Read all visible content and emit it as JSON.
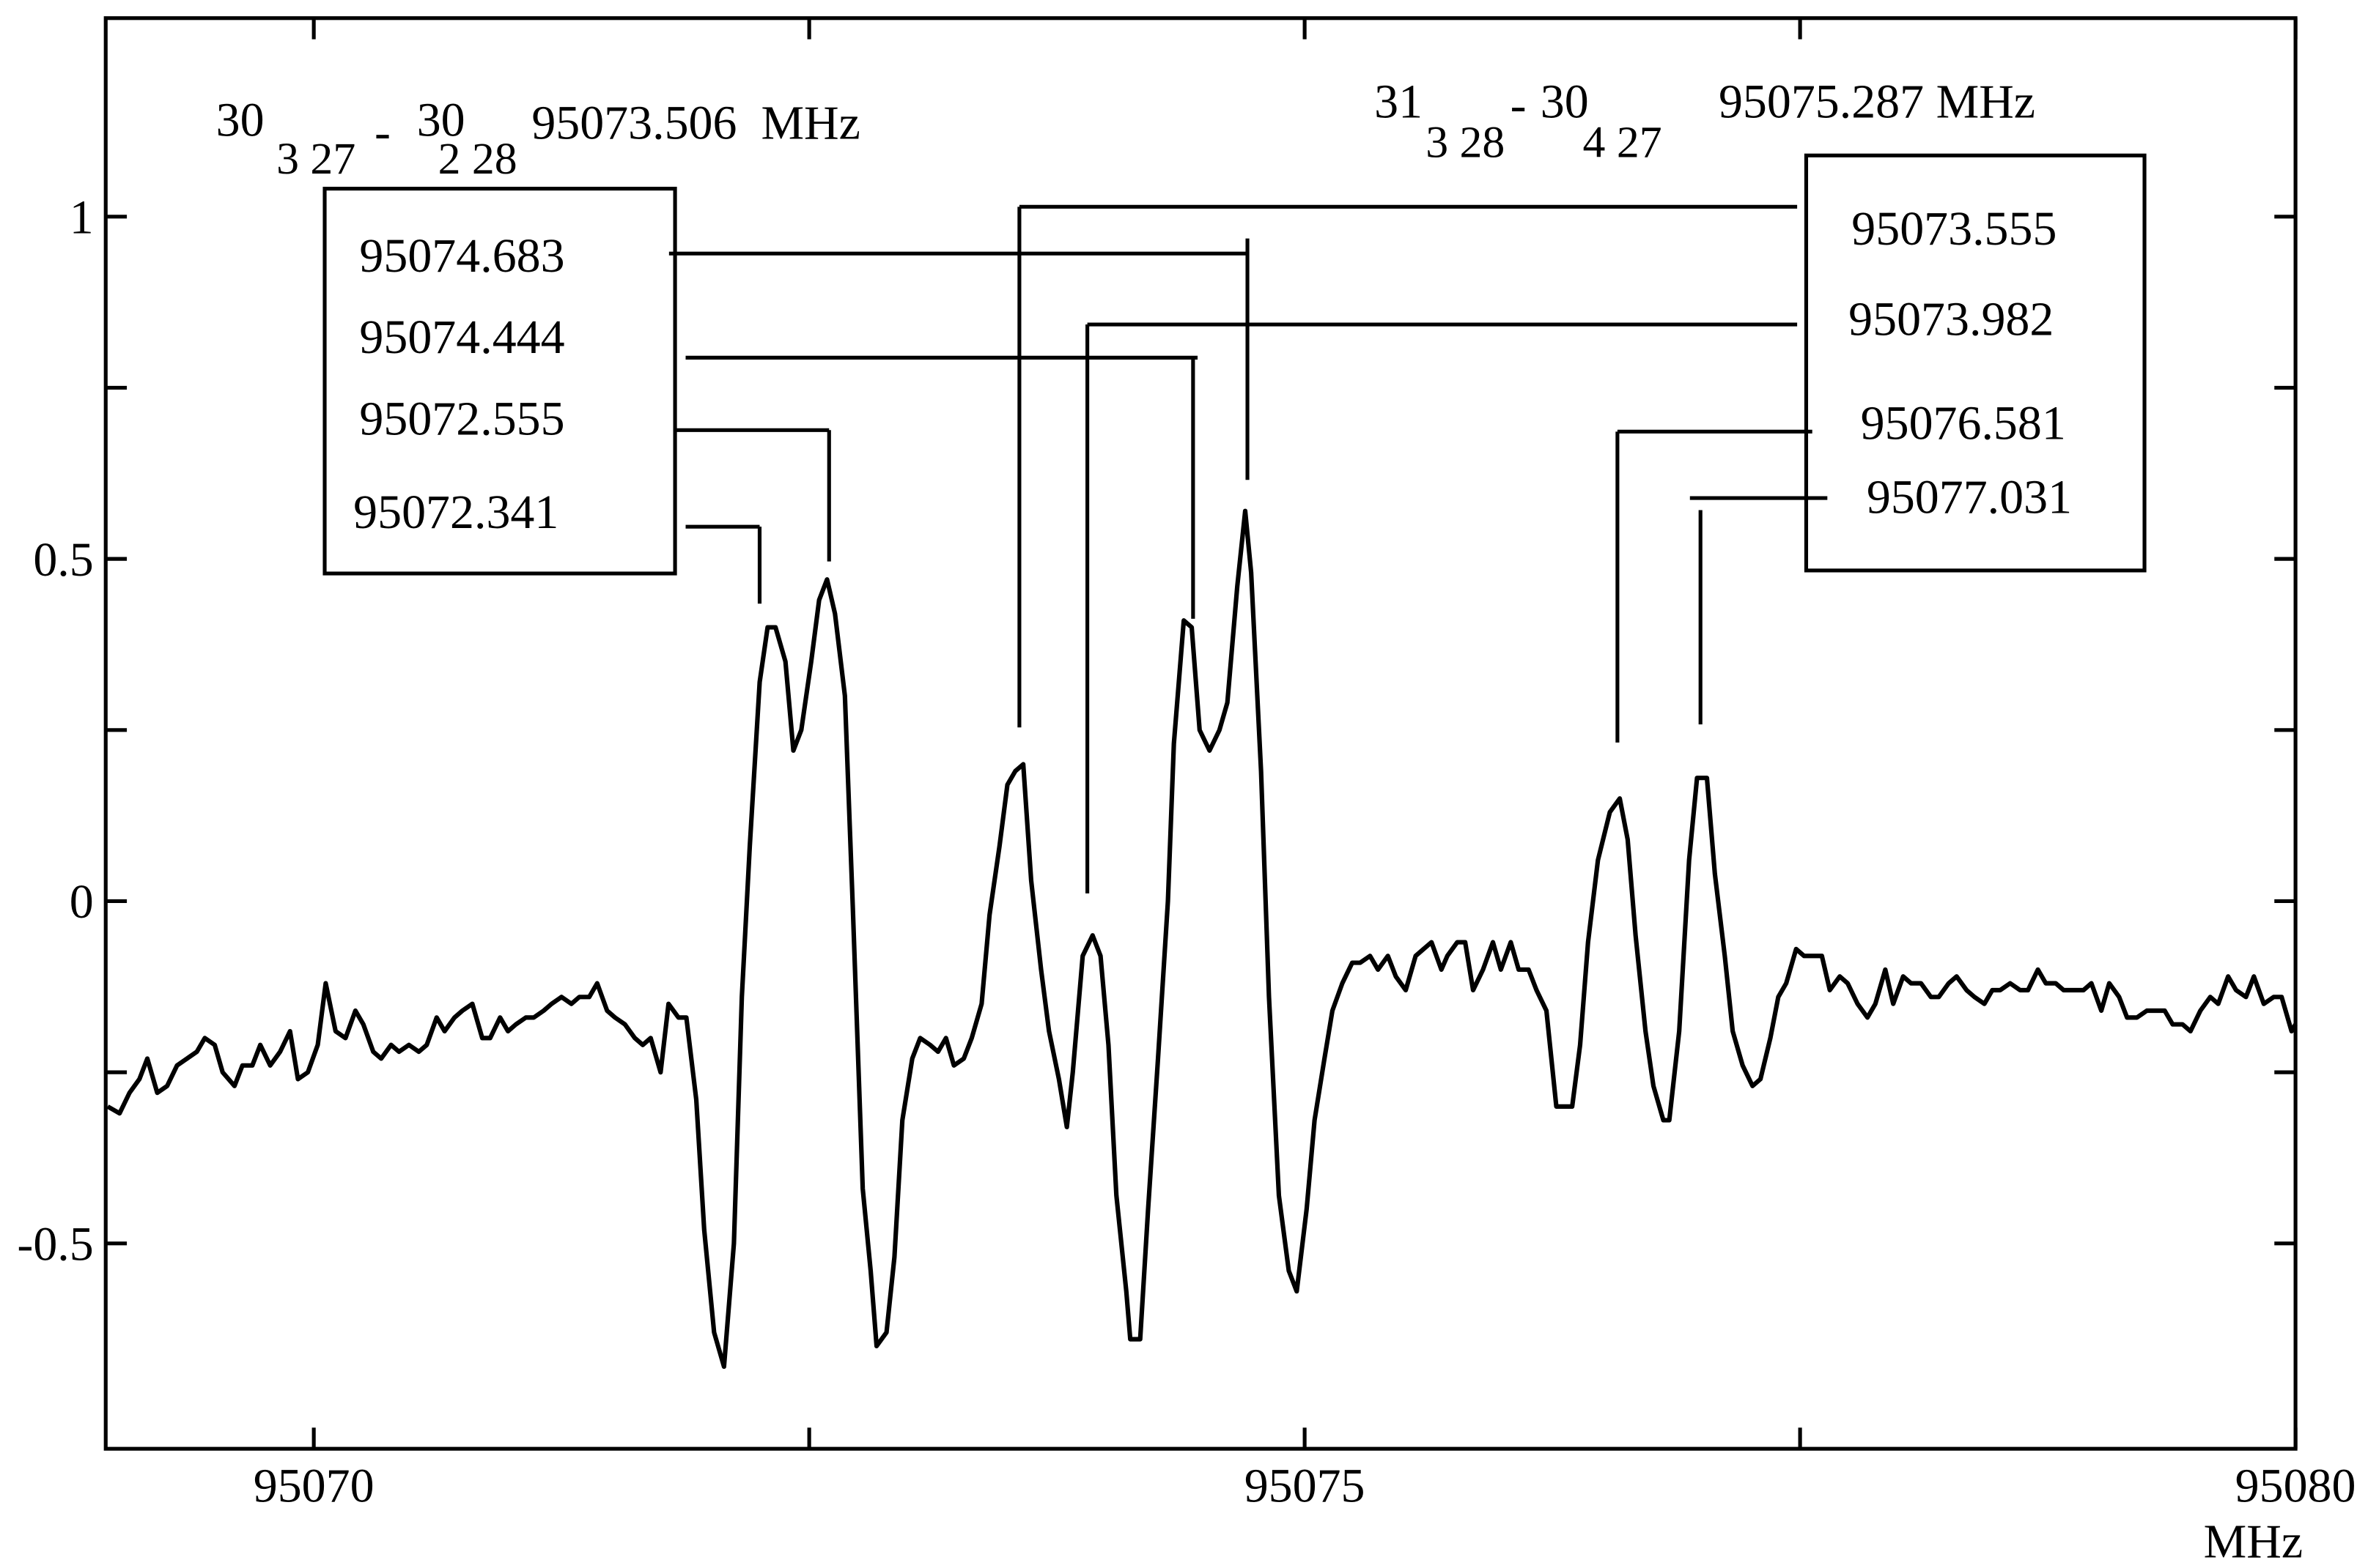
{
  "chart_data": {
    "type": "line",
    "x_label": "MHz",
    "xlim": [
      95068.95,
      95080
    ],
    "ylim": [
      -0.8,
      1.29
    ],
    "xticks": [
      95070,
      95075,
      95080
    ],
    "x_minor_ticks": [
      95072.5,
      95077.5
    ],
    "yticks": [
      -0.5,
      0,
      0.5,
      1
    ],
    "y_minor_ticks": [
      -0.25,
      0.25,
      0.75
    ],
    "color": "#000000",
    "x": [
      95068.96,
      95069.02,
      95069.07,
      95069.12,
      95069.16,
      95069.21,
      95069.26,
      95069.31,
      95069.36,
      95069.41,
      95069.45,
      95069.5,
      95069.54,
      95069.6,
      95069.64,
      95069.69,
      95069.73,
      95069.78,
      95069.83,
      95069.88,
      95069.92,
      95069.97,
      95070.02,
      95070.06,
      95070.11,
      95070.16,
      95070.21,
      95070.25,
      95070.3,
      95070.34,
      95070.39,
      95070.43,
      95070.48,
      95070.53,
      95070.57,
      95070.62,
      95070.66,
      95070.71,
      95070.75,
      95070.8,
      95070.85,
      95070.89,
      95070.94,
      95070.98,
      95071.02,
      95071.07,
      95071.11,
      95071.16,
      95071.2,
      95071.25,
      95071.3,
      95071.34,
      95071.39,
      95071.43,
      95071.48,
      95071.52,
      95071.57,
      95071.62,
      95071.66,
      95071.7,
      95071.75,
      95071.79,
      95071.84,
      95071.88,
      95071.93,
      95071.97,
      95072.02,
      95072.07,
      95072.12,
      95072.16,
      95072.2,
      95072.25,
      95072.29,
      95072.33,
      95072.38,
      95072.42,
      95072.46,
      95072.51,
      95072.55,
      95072.59,
      95072.63,
      95072.68,
      95072.72,
      95072.77,
      95072.81,
      95072.84,
      95072.89,
      95072.93,
      95072.97,
      95073.02,
      95073.06,
      95073.11,
      95073.15,
      95073.19,
      95073.23,
      95073.28,
      95073.32,
      95073.37,
      95073.41,
      95073.46,
      95073.5,
      95073.54,
      95073.58,
      95073.62,
      95073.67,
      95073.71,
      95073.76,
      95073.8,
      95073.83,
      95073.88,
      95073.93,
      95073.97,
      95074.01,
      95074.05,
      95074.1,
      95074.12,
      95074.17,
      95074.21,
      95074.26,
      95074.31,
      95074.34,
      95074.39,
      95074.43,
      95074.47,
      95074.52,
      95074.57,
      95074.61,
      95074.66,
      95074.7,
      95074.73,
      95074.78,
      95074.82,
      95074.87,
      95074.92,
      95074.96,
      95075.01,
      95075.05,
      95075.1,
      95075.14,
      95075.19,
      95075.24,
      95075.28,
      95075.33,
      95075.37,
      95075.42,
      95075.46,
      95075.51,
      95075.56,
      95075.6,
      95075.64,
      95075.69,
      95075.72,
      95075.77,
      95075.81,
      95075.85,
      95075.9,
      95075.95,
      95075.99,
      95076.04,
      95076.08,
      95076.13,
      95076.17,
      95076.22,
      95076.27,
      95076.35,
      95076.39,
      95076.43,
      95076.48,
      95076.54,
      95076.59,
      95076.63,
      95076.67,
      95076.72,
      95076.76,
      95076.81,
      95076.84,
      95076.89,
      95076.94,
      95076.98,
      95077.03,
      95077.07,
      95077.12,
      95077.16,
      95077.21,
      95077.26,
      95077.3,
      95077.35,
      95077.39,
      95077.43,
      95077.48,
      95077.52,
      95077.56,
      95077.61,
      95077.65,
      95077.7,
      95077.74,
      95077.79,
      95077.84,
      95077.88,
      95077.93,
      95077.97,
      95078.02,
      95078.06,
      95078.11,
      95078.16,
      95078.2,
      95078.25,
      95078.29,
      95078.34,
      95078.38,
      95078.43,
      95078.47,
      95078.51,
      95078.56,
      95078.61,
      95078.65,
      95078.7,
      95078.74,
      95078.79,
      95078.83,
      95078.88,
      95078.93,
      95078.97,
      95079.02,
      95079.06,
      95079.11,
      95079.15,
      95079.2,
      95079.25,
      95079.29,
      95079.34,
      95079.38,
      95079.43,
      95079.47,
      95079.52,
      95079.57,
      95079.61,
      95079.66,
      95079.7,
      95079.75,
      95079.79,
      95079.84,
      95079.89,
      95079.93,
      95079.98,
      95080.0
    ],
    "values": [
      -0.3,
      -0.31,
      -0.28,
      -0.26,
      -0.23,
      -0.28,
      -0.27,
      -0.24,
      -0.23,
      -0.22,
      -0.2,
      -0.21,
      -0.25,
      -0.27,
      -0.24,
      -0.24,
      -0.21,
      -0.24,
      -0.22,
      -0.19,
      -0.26,
      -0.25,
      -0.21,
      -0.12,
      -0.19,
      -0.2,
      -0.16,
      -0.18,
      -0.22,
      -0.23,
      -0.21,
      -0.22,
      -0.21,
      -0.22,
      -0.21,
      -0.17,
      -0.19,
      -0.17,
      -0.16,
      -0.15,
      -0.2,
      -0.2,
      -0.17,
      -0.19,
      -0.18,
      -0.17,
      -0.17,
      -0.16,
      -0.15,
      -0.14,
      -0.15,
      -0.14,
      -0.14,
      -0.12,
      -0.16,
      -0.17,
      -0.18,
      -0.2,
      -0.21,
      -0.2,
      -0.25,
      -0.15,
      -0.17,
      -0.17,
      -0.29,
      -0.48,
      -0.63,
      -0.68,
      -0.5,
      -0.14,
      0.08,
      0.32,
      0.4,
      0.4,
      0.35,
      0.22,
      0.25,
      0.35,
      0.44,
      0.47,
      0.42,
      0.3,
      -0.01,
      -0.42,
      -0.54,
      -0.65,
      -0.63,
      -0.52,
      -0.32,
      -0.23,
      -0.2,
      -0.21,
      -0.22,
      -0.2,
      -0.24,
      -0.23,
      -0.2,
      -0.15,
      -0.02,
      0.08,
      0.17,
      0.19,
      0.2,
      0.03,
      -0.1,
      -0.19,
      -0.26,
      -0.33,
      -0.25,
      -0.08,
      -0.05,
      -0.08,
      -0.21,
      -0.43,
      -0.57,
      -0.64,
      -0.64,
      -0.45,
      -0.23,
      0.0,
      0.23,
      0.41,
      0.4,
      0.25,
      0.22,
      0.25,
      0.29,
      0.46,
      0.57,
      0.48,
      0.19,
      -0.14,
      -0.43,
      -0.54,
      -0.57,
      -0.45,
      -0.32,
      -0.23,
      -0.16,
      -0.12,
      -0.09,
      -0.09,
      -0.08,
      -0.1,
      -0.08,
      -0.11,
      -0.13,
      -0.08,
      -0.07,
      -0.06,
      -0.1,
      -0.08,
      -0.06,
      -0.06,
      -0.13,
      -0.1,
      -0.06,
      -0.1,
      -0.06,
      -0.1,
      -0.1,
      -0.13,
      -0.16,
      -0.3,
      -0.3,
      -0.21,
      -0.06,
      0.06,
      0.13,
      0.15,
      0.09,
      -0.05,
      -0.19,
      -0.27,
      -0.32,
      -0.32,
      -0.19,
      0.06,
      0.18,
      0.18,
      0.04,
      -0.08,
      -0.19,
      -0.24,
      -0.27,
      -0.26,
      -0.2,
      -0.14,
      -0.12,
      -0.07,
      -0.08,
      -0.08,
      -0.08,
      -0.13,
      -0.11,
      -0.12,
      -0.15,
      -0.17,
      -0.15,
      -0.1,
      -0.15,
      -0.11,
      -0.12,
      -0.12,
      -0.14,
      -0.14,
      -0.12,
      -0.11,
      -0.13,
      -0.14,
      -0.15,
      -0.13,
      -0.13,
      -0.12,
      -0.13,
      -0.13,
      -0.1,
      -0.12,
      -0.12,
      -0.13,
      -0.13,
      -0.13,
      -0.12,
      -0.16,
      -0.12,
      -0.14,
      -0.17,
      -0.17,
      -0.16,
      -0.16,
      -0.16,
      -0.18,
      -0.18,
      -0.19,
      -0.16,
      -0.14,
      -0.15,
      -0.11,
      -0.13,
      -0.14,
      -0.11,
      -0.15,
      -0.14,
      -0.14,
      -0.19,
      -0.18
    ],
    "annotations": [
      {
        "upper": "30",
        "upper_sub": "3 27",
        "separator": "-",
        "lower": "30",
        "lower_sub": "2 28",
        "frequency": "95073.506  MHz",
        "components": [
          "95074.683",
          "95074.444",
          "95072.555",
          "95072.341"
        ]
      },
      {
        "upper": "31",
        "upper_sub": "3 28",
        "separator": "-",
        "lower": "30",
        "lower_sub": "4 27",
        "frequency": "95075.287 MHz",
        "components": [
          "95073.555",
          "95073.982",
          "95076.581",
          "95077.031"
        ]
      }
    ]
  }
}
